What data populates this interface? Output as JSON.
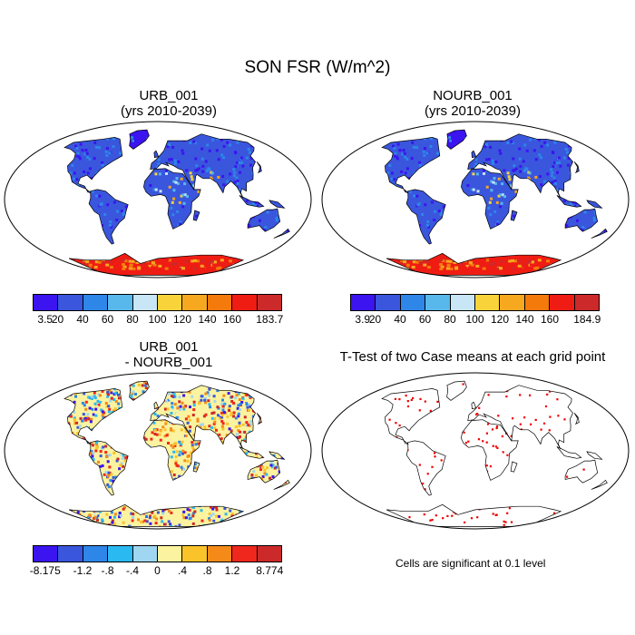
{
  "title": "SON FSR (W/m^2)",
  "colors": {
    "fsr_scale": [
      "#3b14f0",
      "#3a56dd",
      "#2e86e8",
      "#58b8ec",
      "#c8e6f5",
      "#f8d43a",
      "#f6a81f",
      "#f47a0c",
      "#ef1c14",
      "#cc2a2a"
    ],
    "diff_scale": [
      "#3b14f0",
      "#3a56dd",
      "#2e86e8",
      "#2ab9f0",
      "#9fd6f2",
      "#fbf3a0",
      "#fac32a",
      "#f48a18",
      "#f0271c",
      "#cc2a2a"
    ],
    "ttest_dot": "#ee0000"
  },
  "panels": [
    {
      "title_line1": "URB_001",
      "title_line2": "(yrs 2010-2039)",
      "colorbar_labels": [
        "3.5",
        "20",
        "40",
        "60",
        "80",
        "100",
        "120",
        "140",
        "160",
        "183.7"
      ]
    },
    {
      "title_line1": "NOURB_001",
      "title_line2": "(yrs 2010-2039)",
      "colorbar_labels": [
        "3.9",
        "20",
        "40",
        "60",
        "80",
        "100",
        "120",
        "140",
        "160",
        "184.9"
      ]
    },
    {
      "title_line1": "URB_001",
      "title_line2": "- NOURB_001",
      "colorbar_labels": [
        "-8.175",
        "-1.2",
        "-.8",
        "-.4",
        "0",
        ".4",
        ".8",
        "1.2",
        "8.774"
      ]
    },
    {
      "title_line1": "T-Test of two Case means at each grid point",
      "note": "Cells are significant at 0.1 level"
    }
  ]
}
